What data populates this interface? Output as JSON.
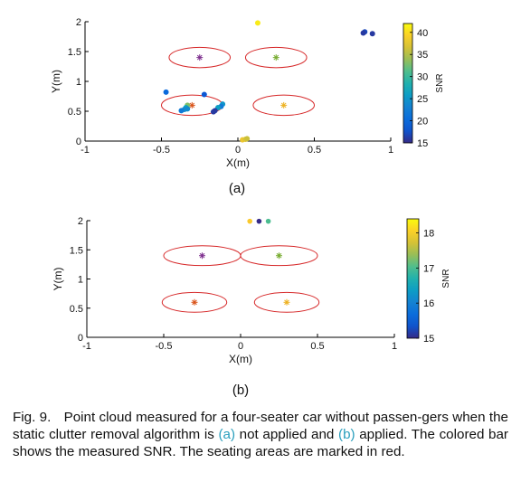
{
  "figure": {
    "label_a": "(a)",
    "label_b": "(b)",
    "caption": {
      "fig_label": "Fig. 9.",
      "text_1": "Point cloud measured for a four-seater car without passen-gers when the static clutter removal algorithm is ",
      "ref_a": "(a)",
      "text_2": " not applied and ",
      "ref_b": "(b)",
      "text_3": " applied. The colored bar shows the measured SNR. The seating areas are marked in red."
    }
  },
  "chart_data": [
    {
      "type": "scatter",
      "id": "a",
      "xlabel": "X(m)",
      "ylabel": "Y(m)",
      "xlim": [
        -1,
        1
      ],
      "ylim": [
        0,
        2
      ],
      "xticks": [
        "-1",
        "-0.5",
        "0",
        "0.5",
        "1"
      ],
      "yticks": [
        "0",
        "0.5",
        "1",
        "1.5",
        "2"
      ],
      "colorbar": {
        "label": "SNR",
        "min": 15,
        "max": 42,
        "ticks": [
          "15",
          "20",
          "25",
          "30",
          "35",
          "40"
        ]
      },
      "seats": [
        {
          "x": -0.25,
          "y": 1.4,
          "rx": 0.2,
          "ry": 0.17,
          "marker_color": "#7e2f8e"
        },
        {
          "x": 0.25,
          "y": 1.4,
          "rx": 0.2,
          "ry": 0.17,
          "marker_color": "#77ac30"
        },
        {
          "x": -0.3,
          "y": 0.6,
          "rx": 0.2,
          "ry": 0.17,
          "marker_color": "#d95319"
        },
        {
          "x": 0.3,
          "y": 0.6,
          "rx": 0.2,
          "ry": 0.17,
          "marker_color": "#edb120"
        }
      ],
      "points": [
        {
          "x": 0.13,
          "y": 1.98,
          "snr": 41
        },
        {
          "x": 0.83,
          "y": 1.83,
          "snr": 17
        },
        {
          "x": 0.82,
          "y": 1.81,
          "snr": 16
        },
        {
          "x": 0.88,
          "y": 1.8,
          "snr": 16
        },
        {
          "x": -0.47,
          "y": 0.82,
          "snr": 20
        },
        {
          "x": -0.22,
          "y": 0.78,
          "snr": 18
        },
        {
          "x": -0.33,
          "y": 0.6,
          "snr": 33
        },
        {
          "x": -0.34,
          "y": 0.56,
          "snr": 27
        },
        {
          "x": -0.33,
          "y": 0.54,
          "snr": 24
        },
        {
          "x": -0.35,
          "y": 0.53,
          "snr": 24
        },
        {
          "x": -0.37,
          "y": 0.51,
          "snr": 22
        },
        {
          "x": -0.1,
          "y": 0.62,
          "snr": 25
        },
        {
          "x": -0.11,
          "y": 0.58,
          "snr": 22
        },
        {
          "x": -0.13,
          "y": 0.56,
          "snr": 26
        },
        {
          "x": -0.15,
          "y": 0.51,
          "snr": 16
        },
        {
          "x": -0.16,
          "y": 0.49,
          "snr": 16
        },
        {
          "x": 0.03,
          "y": 0.02,
          "snr": 38
        },
        {
          "x": 0.05,
          "y": 0.03,
          "snr": 37
        },
        {
          "x": 0.06,
          "y": 0.04,
          "snr": 36
        }
      ]
    },
    {
      "type": "scatter",
      "id": "b",
      "xlabel": "X(m)",
      "ylabel": "Y(m)",
      "xlim": [
        -1,
        1
      ],
      "ylim": [
        0,
        2
      ],
      "xticks": [
        "-1",
        "-0.5",
        "0",
        "0.5",
        "1"
      ],
      "yticks": [
        "0",
        "0.5",
        "1",
        "1.5",
        "2"
      ],
      "colorbar": {
        "label": "SNR",
        "min": 15,
        "max": 18.4,
        "ticks": [
          "15",
          "16",
          "17",
          "18"
        ]
      },
      "seats": [
        {
          "x": -0.25,
          "y": 1.4,
          "rx": 0.25,
          "ry": 0.17,
          "marker_color": "#7e2f8e"
        },
        {
          "x": 0.25,
          "y": 1.4,
          "rx": 0.25,
          "ry": 0.17,
          "marker_color": "#77ac30"
        },
        {
          "x": -0.3,
          "y": 0.6,
          "rx": 0.21,
          "ry": 0.17,
          "marker_color": "#d95319"
        },
        {
          "x": 0.3,
          "y": 0.6,
          "rx": 0.21,
          "ry": 0.17,
          "marker_color": "#edb120"
        }
      ],
      "points": [
        {
          "x": 0.06,
          "y": 1.99,
          "snr": 18
        },
        {
          "x": 0.12,
          "y": 1.99,
          "snr": 15
        },
        {
          "x": 0.18,
          "y": 1.99,
          "snr": 17
        }
      ]
    }
  ]
}
